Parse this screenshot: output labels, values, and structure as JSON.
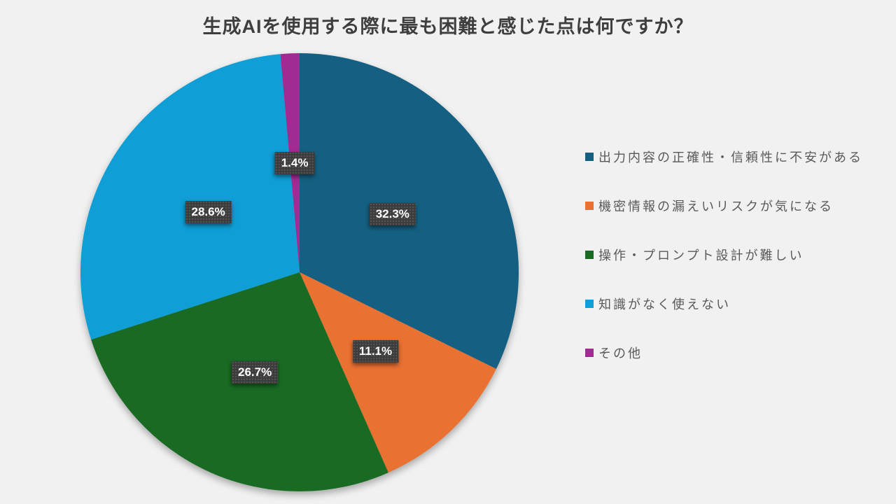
{
  "chart_data": {
    "type": "pie",
    "title": "生成AIを使用する際に最も困難と感じた点は何ですか？",
    "legend_position": "right",
    "start_angle_deg": 0,
    "label_radius_ratio": 0.5,
    "background_color": "#F1F1F1",
    "title_color": "#3E3E3E",
    "legend_text_color": "#595959",
    "data_label_bg_color": "#3B3B3B",
    "data_label_text_color": "#FFFFFF",
    "slices": [
      {
        "label": "出力内容の正確性・信頼性に不安がある",
        "value": 32.3,
        "pct_label": "32.3%",
        "color": "#156082"
      },
      {
        "label": "機密情報の漏えいリスクが気になる",
        "value": 11.1,
        "pct_label": "11.1%",
        "color": "#E97132"
      },
      {
        "label": "操作・プロンプト設計が難しい",
        "value": 26.7,
        "pct_label": "26.7%",
        "color": "#196B24"
      },
      {
        "label": "知識がなく使えない",
        "value": 28.6,
        "pct_label": "28.6%",
        "color": "#0F9ED5"
      },
      {
        "label": "その他",
        "value": 1.4,
        "pct_label": "1.4%",
        "color": "#A02B93"
      }
    ]
  }
}
